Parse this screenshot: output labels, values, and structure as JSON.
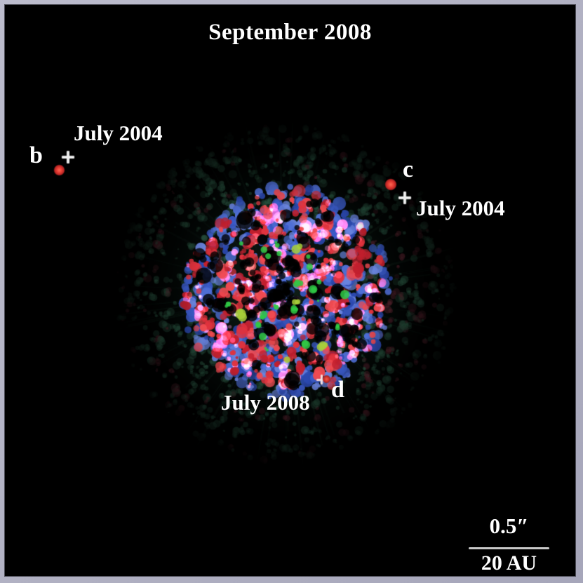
{
  "figure": {
    "title": "September 2008",
    "planets": [
      {
        "name": "b",
        "label": "b",
        "epoch": "July 2004"
      },
      {
        "name": "c",
        "label": "c",
        "epoch": "July 2004"
      },
      {
        "name": "d",
        "label": "d",
        "epoch": "July 2008"
      }
    ],
    "scale_bar": {
      "angular": "0.5″",
      "physical": "20 AU"
    },
    "colors": {
      "frame": "#b0b0c2",
      "background": "#000000",
      "text": "#ffffff",
      "planet_dot": "#e23830",
      "marker_cross": "#ededed",
      "scale_line": "#c9c9c9",
      "speckle_blue_1": "#3b5bc8",
      "speckle_blue_2": "#4f6fd6",
      "speckle_blue_3": "#6a84de",
      "speckle_blue_4": "#2c49b0",
      "speckle_red_1": "#e0333e",
      "speckle_red_2": "#c2202e",
      "speckle_red_3": "#ef4a50",
      "speckle_green": "#2fc945",
      "speckle_yellow_green": "#a8cf3a",
      "speckle_pink": "#d06ab0",
      "halo_green": "#2c5a45",
      "halo_red": "#5a2430"
    }
  }
}
